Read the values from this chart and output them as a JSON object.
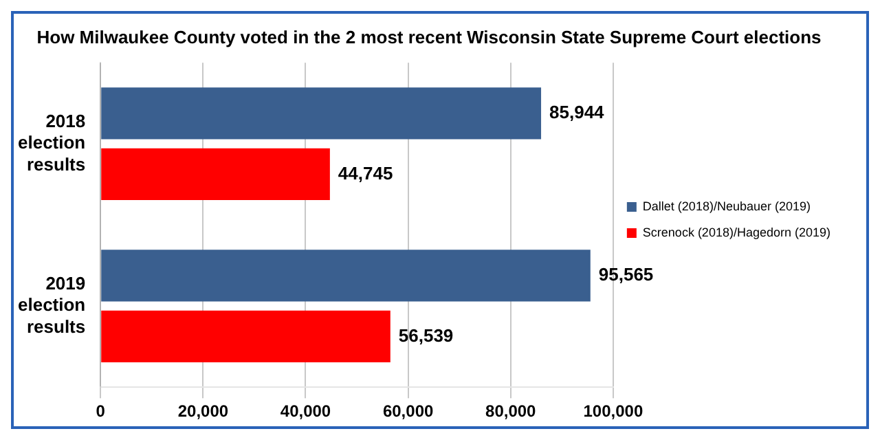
{
  "chart_data": {
    "type": "bar",
    "orientation": "horizontal",
    "title": "How Milwaukee County voted in the 2 most recent Wisconsin State Supreme Court elections",
    "categories": [
      "2018 election results",
      "2019 election results"
    ],
    "series": [
      {
        "name": "Dallet (2018)/Neubauer (2019)",
        "color": "#3a5f8f",
        "values": [
          85944,
          95565
        ],
        "value_labels": [
          "85,944",
          "95,565"
        ]
      },
      {
        "name": "Screnock (2018)/Hagedorn (2019)",
        "color": "#ff0000",
        "values": [
          44745,
          56539
        ],
        "value_labels": [
          "44,745",
          "56,539"
        ]
      }
    ],
    "xlim": [
      0,
      100000
    ],
    "xticks": [
      {
        "value": 0,
        "label": "0"
      },
      {
        "value": 20000,
        "label": "20,000"
      },
      {
        "value": 40000,
        "label": "40,000"
      },
      {
        "value": 60000,
        "label": "60,000"
      },
      {
        "value": 80000,
        "label": "80,000"
      },
      {
        "value": 100000,
        "label": "100,000"
      }
    ],
    "grid": "x",
    "legend": "right"
  }
}
